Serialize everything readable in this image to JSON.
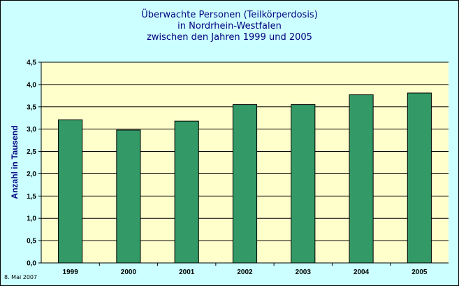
{
  "chart_data": {
    "type": "bar",
    "title": [
      "Überwachte Personen (Teilkörperdosis)",
      "in Nordrhein-Westfalen",
      "zwischen den Jahren 1999 und 2005"
    ],
    "xlabel": "",
    "ylabel": "Anzahl in Tausend",
    "categories": [
      "1999",
      "2000",
      "2001",
      "2002",
      "2003",
      "2004",
      "2005"
    ],
    "values": [
      3.21,
      2.98,
      3.18,
      3.55,
      3.55,
      3.77,
      3.81
    ],
    "ylim": [
      0,
      4.5
    ],
    "yticks": [
      "0,0",
      "0,5",
      "1,0",
      "1,5",
      "2,0",
      "2,5",
      "3,0",
      "3,5",
      "4,0",
      "4,5"
    ],
    "grid": true,
    "colors": {
      "bar": "#339966",
      "plot_background": "#ffffcc",
      "chart_background": "#ccffff",
      "title": "#000080"
    }
  },
  "footer": {
    "date": "8. Mai 2007"
  }
}
